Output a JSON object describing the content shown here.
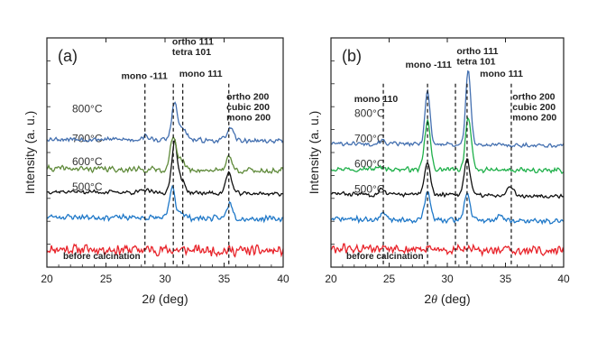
{
  "chart_data": [
    {
      "type": "line",
      "panel_tag": "(a)",
      "xlabel_prefix": "2",
      "xlabel_symbol": "θ",
      "xlabel_suffix": " (deg)",
      "ylabel": "Intensity  (a. u.)",
      "xlim": [
        20,
        40
      ],
      "xticks": [
        "20",
        "25",
        "30",
        "35",
        "40"
      ],
      "series": [
        {
          "name": "before calcination",
          "color": "#e8232a",
          "offset": 0.8,
          "noise": 0.55,
          "seed": 11,
          "peaks": []
        },
        {
          "name": "500°C",
          "color": "#1f78c8",
          "offset": 2.2,
          "noise": 0.3,
          "seed": 23,
          "peaks": [
            [
              30.6,
              1.3,
              0.22
            ],
            [
              31.3,
              0.3,
              0.3
            ],
            [
              35.5,
              0.7,
              0.25
            ]
          ]
        },
        {
          "name": "600°C",
          "color": "#111111",
          "offset": 3.3,
          "noise": 0.22,
          "seed": 37,
          "peaks": [
            [
              30.8,
              2.2,
              0.24
            ],
            [
              31.4,
              0.5,
              0.3
            ],
            [
              35.4,
              0.9,
              0.25
            ],
            [
              28.3,
              0.1,
              0.3
            ]
          ]
        },
        {
          "name": "700°C",
          "color": "#5f8a3a",
          "offset": 4.3,
          "noise": 0.3,
          "seed": 41,
          "peaks": [
            [
              30.7,
              1.5,
              0.24
            ],
            [
              31.4,
              0.4,
              0.3
            ],
            [
              35.4,
              0.6,
              0.25
            ]
          ]
        },
        {
          "name": "800°C",
          "color": "#4470b0",
          "offset": 5.6,
          "noise": 0.25,
          "seed": 53,
          "peaks": [
            [
              30.8,
              1.6,
              0.24
            ],
            [
              31.5,
              0.5,
              0.3
            ],
            [
              35.5,
              0.5,
              0.3
            ],
            [
              28.3,
              0.15,
              0.3
            ]
          ]
        }
      ],
      "reference_lines": [
        28.3,
        30.7,
        31.5,
        35.4
      ],
      "peak_labels": [
        {
          "lines": [
            "mono -111"
          ],
          "x": 26.3,
          "y": 8.2
        },
        {
          "lines": [
            "ortho 111",
            "tetra 101"
          ],
          "x": 30.6,
          "y": 9.7
        },
        {
          "lines": [
            "mono 111"
          ],
          "x": 31.2,
          "y": 8.3
        },
        {
          "lines": [
            "ortho 200",
            "cubic 200",
            "mono 200"
          ],
          "x": 35.2,
          "y": 7.3
        }
      ]
    },
    {
      "type": "line",
      "panel_tag": "(b)",
      "xlabel_prefix": "2",
      "xlabel_symbol": "θ",
      "xlabel_suffix": " (deg)",
      "ylabel": "Intensity  (a. u.)",
      "xlim": [
        20,
        40
      ],
      "xticks": [
        "20",
        "25",
        "30",
        "35",
        "40"
      ],
      "series": [
        {
          "name": "before calcination",
          "color": "#e8232a",
          "offset": 0.8,
          "noise": 0.5,
          "seed": 61,
          "peaks": []
        },
        {
          "name": "500°C",
          "color": "#1f78c8",
          "offset": 2.1,
          "noise": 0.28,
          "seed": 71,
          "peaks": [
            [
              24.6,
              0.3,
              0.25
            ],
            [
              28.3,
              1.2,
              0.25
            ],
            [
              31.7,
              1.2,
              0.25
            ],
            [
              34.5,
              0.2,
              0.3
            ]
          ]
        },
        {
          "name": "600°C",
          "color": "#111111",
          "offset": 3.2,
          "noise": 0.22,
          "seed": 83,
          "peaks": [
            [
              24.4,
              0.25,
              0.25
            ],
            [
              28.3,
              1.4,
              0.25
            ],
            [
              31.7,
              1.6,
              0.25
            ],
            [
              35.4,
              0.4,
              0.3
            ]
          ]
        },
        {
          "name": "700°C",
          "color": "#1fb04a",
          "offset": 4.3,
          "noise": 0.25,
          "seed": 97,
          "peaks": [
            [
              28.3,
              2.1,
              0.25
            ],
            [
              31.8,
              2.3,
              0.25
            ],
            [
              24.4,
              0.1,
              0.25
            ]
          ]
        },
        {
          "name": "800°C",
          "color": "#4470b0",
          "offset": 5.4,
          "noise": 0.22,
          "seed": 101,
          "peaks": [
            [
              28.3,
              2.3,
              0.22
            ],
            [
              31.8,
              3.2,
              0.22
            ],
            [
              24.4,
              0.15,
              0.25
            ]
          ]
        }
      ],
      "reference_lines": [
        24.5,
        28.3,
        30.7,
        31.7,
        35.5
      ],
      "peak_labels": [
        {
          "lines": [
            "mono 110"
          ],
          "x": 22.0,
          "y": 7.2
        },
        {
          "lines": [
            "mono -111"
          ],
          "x": 26.4,
          "y": 8.7
        },
        {
          "lines": [
            "ortho 111",
            "tetra 101"
          ],
          "x": 30.8,
          "y": 9.3
        },
        {
          "lines": [
            "mono 111"
          ],
          "x": 32.8,
          "y": 8.3
        },
        {
          "lines": [
            "ortho 200",
            "cubic 200",
            "mono 200"
          ],
          "x": 35.6,
          "y": 7.3
        }
      ]
    }
  ]
}
